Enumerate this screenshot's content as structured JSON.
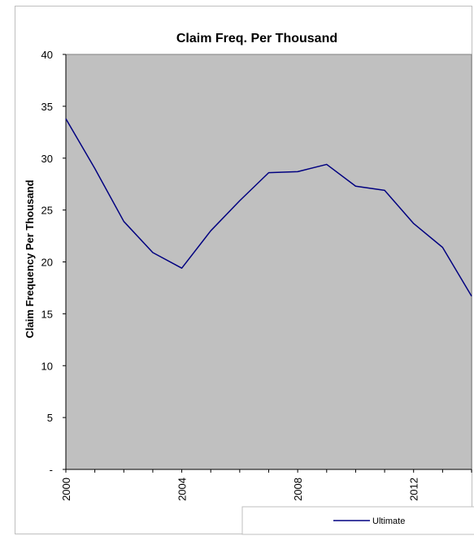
{
  "chart_data": {
    "type": "line",
    "title": "Claim Freq. Per Thousand",
    "xlabel": "",
    "ylabel": "Claim Frequency Per Thousand",
    "x": [
      2000,
      2001,
      2002,
      2003,
      2004,
      2005,
      2006,
      2007,
      2008,
      2009,
      2010,
      2011,
      2012,
      2013,
      2014
    ],
    "x_tick_labels": [
      "2000",
      "2004",
      "2008",
      "2012"
    ],
    "x_tick_values": [
      2000,
      2004,
      2008,
      2012
    ],
    "xlim": [
      2000,
      2014
    ],
    "ylim": [
      0,
      40
    ],
    "y_tick_values": [
      0,
      5,
      10,
      15,
      20,
      25,
      30,
      35,
      40
    ],
    "y_tick_labels": [
      "-",
      "5",
      "10",
      "15",
      "20",
      "25",
      "30",
      "35",
      "40"
    ],
    "grid": false,
    "plot_background": "#c0c0c0",
    "legend_position": "bottom-right",
    "series": [
      {
        "name": "Ultimate",
        "color": "#000080",
        "values": [
          33.8,
          29.0,
          23.9,
          20.9,
          19.4,
          23.0,
          25.9,
          28.6,
          28.7,
          29.4,
          27.3,
          26.9,
          23.7,
          21.4,
          16.7
        ]
      }
    ]
  }
}
